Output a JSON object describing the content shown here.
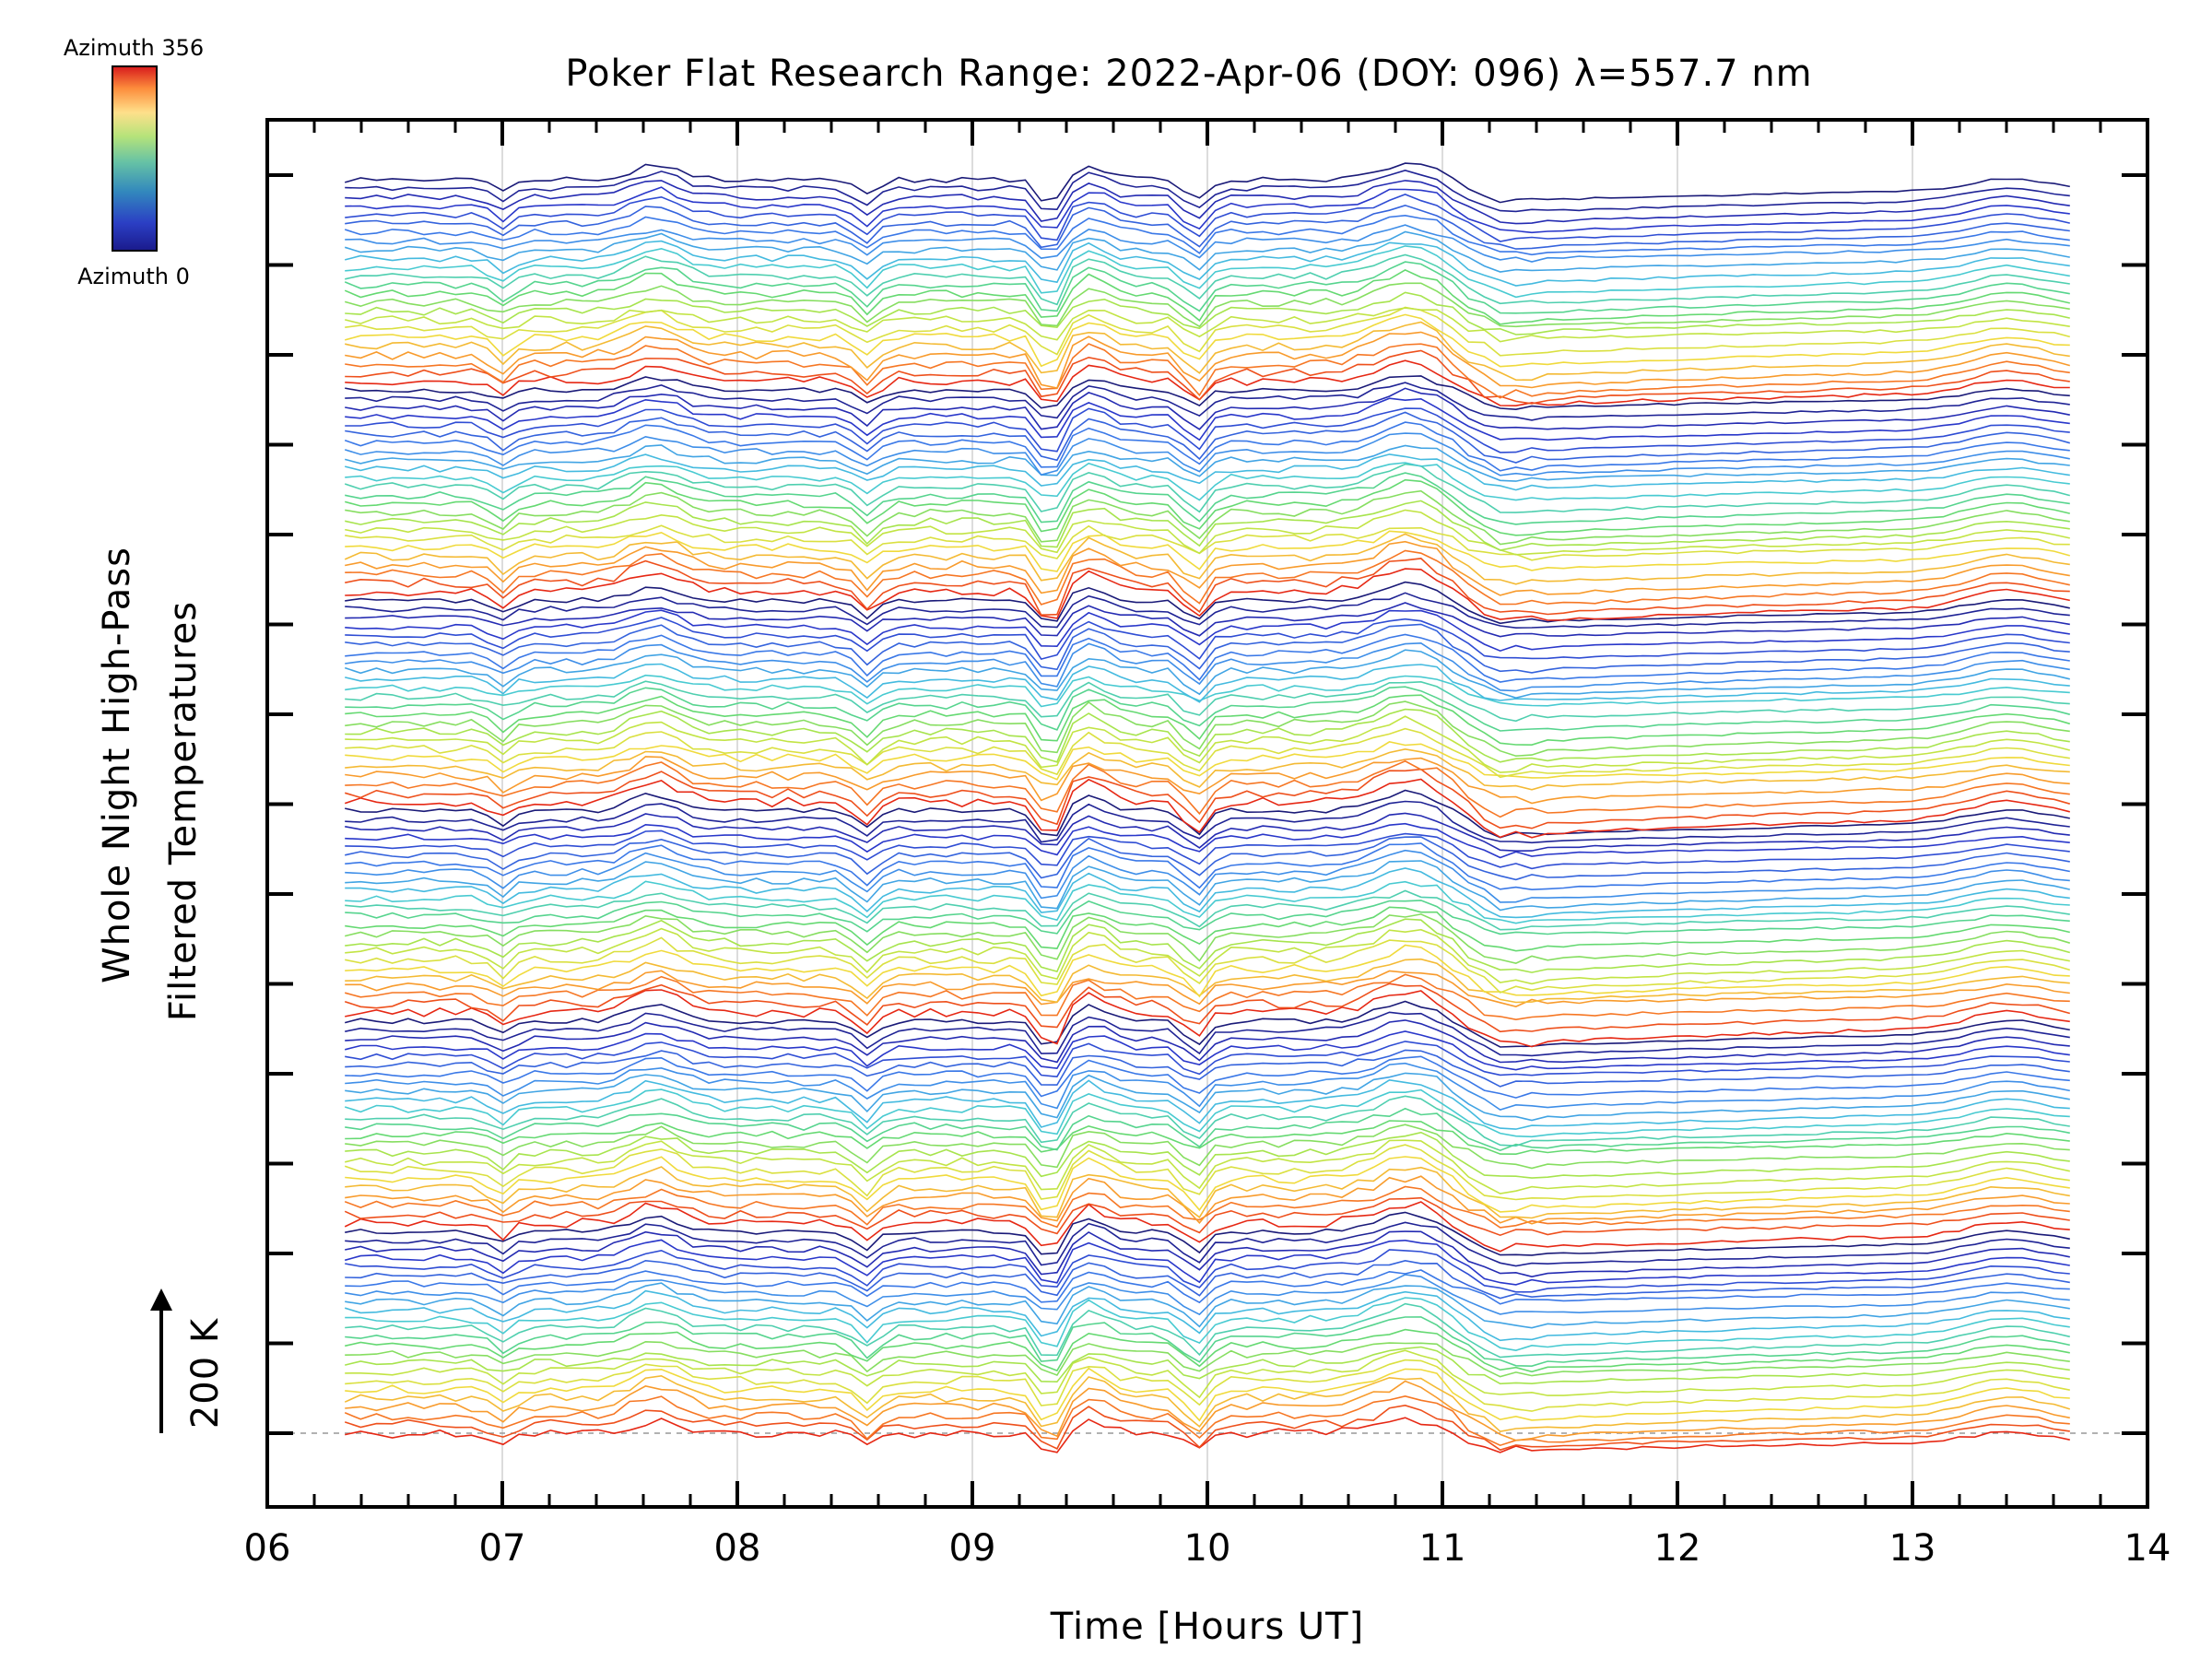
{
  "chart_data": {
    "type": "line",
    "title": "Poker Flat Research Range: 2022-Apr-06 (DOY: 096) λ=557.7 nm",
    "xlabel": "Time [Hours UT]",
    "ylabel_line1": "Whole Night High-Pass",
    "ylabel_line2": "Filtered Temperatures",
    "scale_bar_label": "200 K",
    "colorbar": {
      "top_label": "Azimuth 356",
      "bottom_label": "Azimuth 0",
      "colors": [
        "#d7191c",
        "#fd8d3c",
        "#fee08b",
        "#d9ef8b",
        "#66c2a5",
        "#3288bd",
        "#2b3fc4",
        "#1a1a8c"
      ]
    },
    "xlim": [
      6,
      14
    ],
    "x_ticks": [
      "06",
      "07",
      "08",
      "09",
      "10",
      "11",
      "12",
      "13",
      "14"
    ],
    "grid": true,
    "legend": "colorbar top-left",
    "time_start": 6.33,
    "time_end": 13.67,
    "stack_groups": 6,
    "traces_per_group": 24,
    "dip_times": [
      7.0,
      8.55,
      9.33,
      9.95,
      11.2
    ],
    "offset_per_trace": 12
  }
}
